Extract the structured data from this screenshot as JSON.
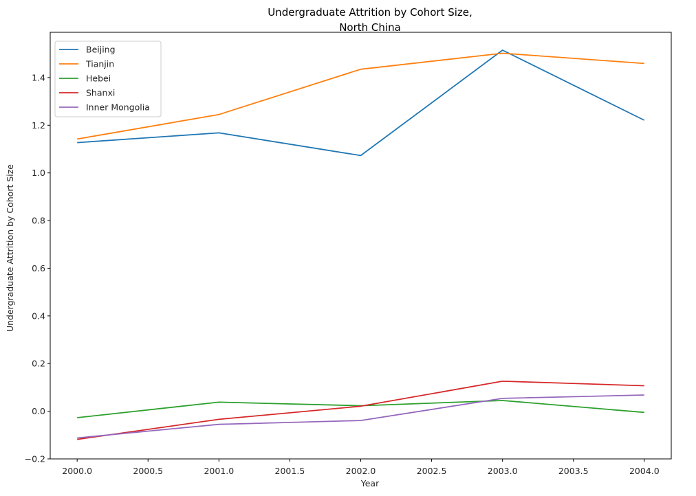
{
  "chart_data": {
    "type": "line",
    "title_lines": [
      "Undergraduate Attrition by Cohort Size,",
      "North China"
    ],
    "xlabel": "Year",
    "ylabel": "Undergraduate Attrition by Cohort Size",
    "xlim": [
      1999.81,
      2004.19
    ],
    "ylim": [
      -0.2,
      1.59
    ],
    "x_ticks": [
      2000.0,
      2000.5,
      2001.0,
      2001.5,
      2002.0,
      2002.5,
      2003.0,
      2003.5,
      2004.0
    ],
    "x_tick_labels": [
      "2000.0",
      "2000.5",
      "2001.0",
      "2001.5",
      "2002.0",
      "2002.5",
      "2003.0",
      "2003.5",
      "2004.0"
    ],
    "y_ticks": [
      -0.2,
      0.0,
      0.2,
      0.4,
      0.6,
      0.8,
      1.0,
      1.2,
      1.4
    ],
    "y_tick_labels": [
      "−0.2",
      "0.0",
      "0.2",
      "0.4",
      "0.6",
      "0.8",
      "1.0",
      "1.2",
      "1.4"
    ],
    "x": [
      2000,
      2001,
      2002,
      2003,
      2004
    ],
    "series": [
      {
        "name": "Beijing",
        "color": "#1f77b4",
        "values": [
          1.127,
          1.168,
          1.073,
          1.515,
          1.221
        ]
      },
      {
        "name": "Tianjin",
        "color": "#ff7f0e",
        "values": [
          1.142,
          1.245,
          1.435,
          1.502,
          1.459
        ]
      },
      {
        "name": "Hebei",
        "color": "#2ca02c",
        "values": [
          -0.027,
          0.038,
          0.023,
          0.045,
          -0.005
        ]
      },
      {
        "name": "Shanxi",
        "color": "#d62728",
        "values": [
          -0.118,
          -0.034,
          0.021,
          0.126,
          0.107
        ]
      },
      {
        "name": "Inner Mongolia",
        "color": "#9467bd",
        "values": [
          -0.112,
          -0.055,
          -0.039,
          0.054,
          0.068
        ]
      }
    ],
    "grid": false,
    "legend_position": "upper-left"
  }
}
